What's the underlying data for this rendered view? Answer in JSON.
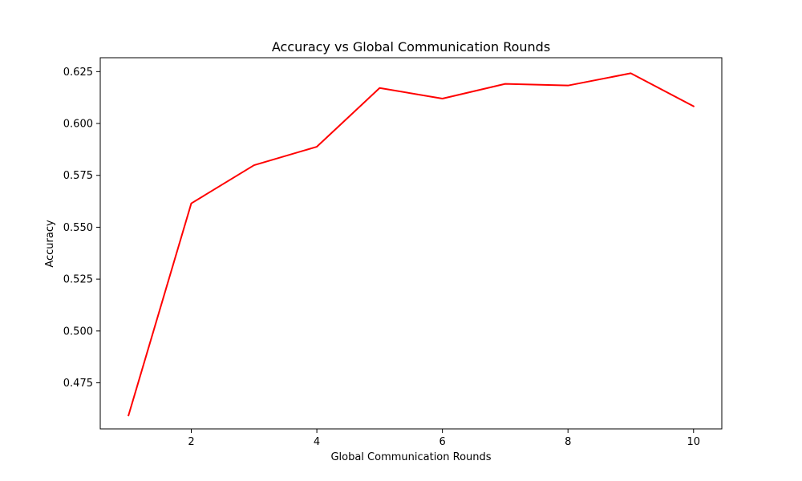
{
  "chart_data": {
    "type": "line",
    "title": "Accuracy vs Global Communication Rounds",
    "xlabel": "Global Communication Rounds",
    "ylabel": "Accuracy",
    "x": [
      1,
      2,
      3,
      4,
      5,
      6,
      7,
      8,
      9,
      10
    ],
    "series": [
      {
        "values": [
          0.4593,
          0.5615,
          0.5799,
          0.5888,
          0.6171,
          0.612,
          0.6191,
          0.6183,
          0.6242,
          0.6083
        ],
        "color": "#ff0000"
      }
    ],
    "xlim": [
      0.55,
      10.45
    ],
    "ylim": [
      0.4528,
      0.6317
    ],
    "xticks": [
      2,
      4,
      6,
      8,
      10
    ],
    "yticks": [
      0.475,
      0.5,
      0.525,
      0.55,
      0.575,
      0.6,
      0.625
    ],
    "xtick_labels": [
      "2",
      "4",
      "6",
      "8",
      "10"
    ],
    "ytick_labels": [
      "0.475",
      "0.500",
      "0.525",
      "0.550",
      "0.575",
      "0.600",
      "0.625"
    ],
    "grid": false,
    "legend": false
  }
}
